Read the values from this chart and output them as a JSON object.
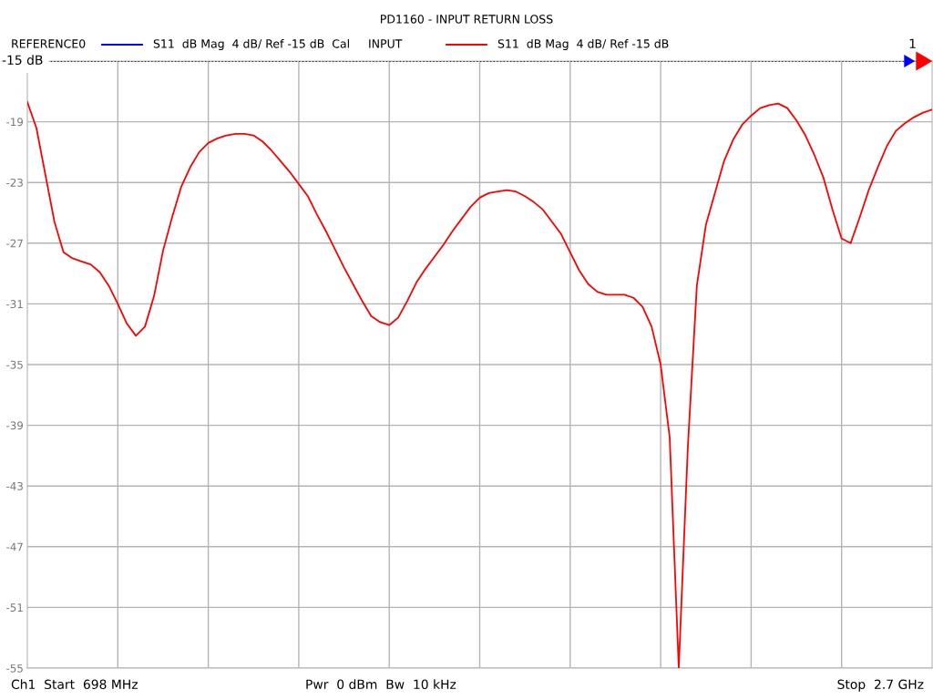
{
  "chart_data": {
    "type": "line",
    "title": "PD1160 - INPUT RETURN LOSS",
    "categories": [
      null,
      null,
      null,
      null,
      null,
      null,
      null,
      null,
      null,
      null,
      null,
      null,
      null,
      null,
      null,
      null,
      null,
      null,
      null,
      null,
      null,
      null,
      null,
      null,
      null,
      null,
      null,
      null,
      null,
      null,
      null,
      null,
      null,
      null,
      null,
      null,
      null,
      null,
      null,
      null,
      null,
      null,
      null,
      null,
      null,
      null,
      null,
      null,
      null,
      null,
      null,
      null,
      null,
      null,
      null,
      null,
      null,
      null,
      null,
      null,
      null,
      null,
      null,
      null,
      null,
      null,
      null,
      null,
      null,
      null,
      null,
      null,
      null,
      null,
      null,
      null,
      null,
      null,
      null,
      null,
      null,
      null,
      null,
      null,
      null,
      null,
      null,
      null,
      null,
      null,
      null,
      null,
      null,
      null,
      null,
      null,
      null,
      null,
      null,
      null,
      null
    ],
    "ylim": [
      -55,
      -15
    ],
    "yticks": [
      {
        "value": -15,
        "label": null
      },
      {
        "value": -19,
        "label": "-19"
      },
      {
        "value": -23,
        "label": "-23"
      },
      {
        "value": -27,
        "label": "-27"
      },
      {
        "value": -31,
        "label": "-31"
      },
      {
        "value": -35,
        "label": "-35"
      },
      {
        "value": -39,
        "label": "-39"
      },
      {
        "value": -43,
        "label": "-43"
      },
      {
        "value": -47,
        "label": "-47"
      },
      {
        "value": -51,
        "label": "-51"
      },
      {
        "value": -55,
        "label": "-55"
      }
    ],
    "tick_labels": "y",
    "grid": true,
    "legend": "top left",
    "line_style": "solid",
    "marker": "none",
    "ref_lines": [
      {
        "axis": "y",
        "value": -15,
        "label": "-15 dB",
        "line_style": "dotted",
        "color": "#000000"
      }
    ],
    "annotations": [
      "REFERENCE0",
      "INPUT",
      "1",
      "Ch1  Start  698 MHz",
      "Pwr  0 dBm  Bw  10 kHz",
      "Stop  2.7 GHz"
    ],
    "series": [
      {
        "name": "S11  dB Mag  4 dB/ Ref -15 dB  Cal",
        "color": "#0000ff",
        "values": [
          null,
          null,
          null,
          null,
          null,
          null,
          null,
          null,
          null,
          null,
          null,
          null,
          null,
          null,
          null,
          null,
          null,
          null,
          null,
          null,
          null,
          null,
          null,
          null,
          null,
          null,
          null,
          null,
          null,
          null,
          null,
          null,
          null,
          null,
          null,
          null,
          null,
          null,
          null,
          null,
          null,
          null,
          null,
          null,
          null,
          null,
          null,
          null,
          null,
          null,
          null,
          null,
          null,
          null,
          null,
          null,
          null,
          null,
          null,
          null,
          null,
          null,
          null,
          null,
          null,
          null,
          null,
          null,
          null,
          null,
          null,
          null,
          null,
          null,
          null,
          null,
          null,
          null,
          null,
          null,
          null,
          null,
          null,
          null,
          null,
          null,
          null,
          null,
          null,
          null,
          null,
          null,
          null,
          null,
          null,
          null,
          null,
          null,
          null,
          null,
          null
        ]
      },
      {
        "name": "S11  dB Mag  4 dB/ Ref -15 dB",
        "color": "#ff0000",
        "values": [
          -17.7,
          -19.4,
          -22.5,
          -25.6,
          -27.6,
          -28.0,
          -28.2,
          -28.4,
          -28.9,
          -29.8,
          -31.0,
          -32.3,
          -33.1,
          -32.5,
          -30.5,
          -27.5,
          -25.3,
          -23.3,
          -22.0,
          -21.0,
          -20.4,
          -20.1,
          -19.9,
          -19.8,
          -19.8,
          -19.9,
          -20.3,
          -20.9,
          -21.6,
          -22.3,
          -23.1,
          -23.9,
          -25.1,
          -26.2,
          -27.4,
          -28.6,
          -29.7,
          -30.8,
          -31.8,
          -32.2,
          -32.4,
          -31.9,
          -30.8,
          -29.6,
          -28.7,
          -27.9,
          -27.1,
          -26.2,
          -25.4,
          -24.6,
          -24.0,
          -23.7,
          -23.6,
          -23.5,
          -23.6,
          -23.9,
          -24.3,
          -24.8,
          -25.6,
          -26.4,
          -27.6,
          -28.8,
          -29.7,
          -30.2,
          -30.4,
          -30.4,
          -30.4,
          -30.6,
          -31.2,
          -32.5,
          -35.0,
          -39.8,
          -55.0,
          -40.5,
          -29.8,
          -25.8,
          -23.7,
          -21.6,
          -20.2,
          -19.2,
          -18.6,
          -18.1,
          -17.9,
          -17.8,
          -18.1,
          -18.9,
          -19.9,
          -21.2,
          -22.7,
          -24.8,
          -26.7,
          -27.0,
          -25.3,
          -23.5,
          -22.0,
          -20.6,
          -19.6,
          -19.1,
          -18.7,
          -18.4,
          -18.2
        ]
      }
    ]
  }
}
